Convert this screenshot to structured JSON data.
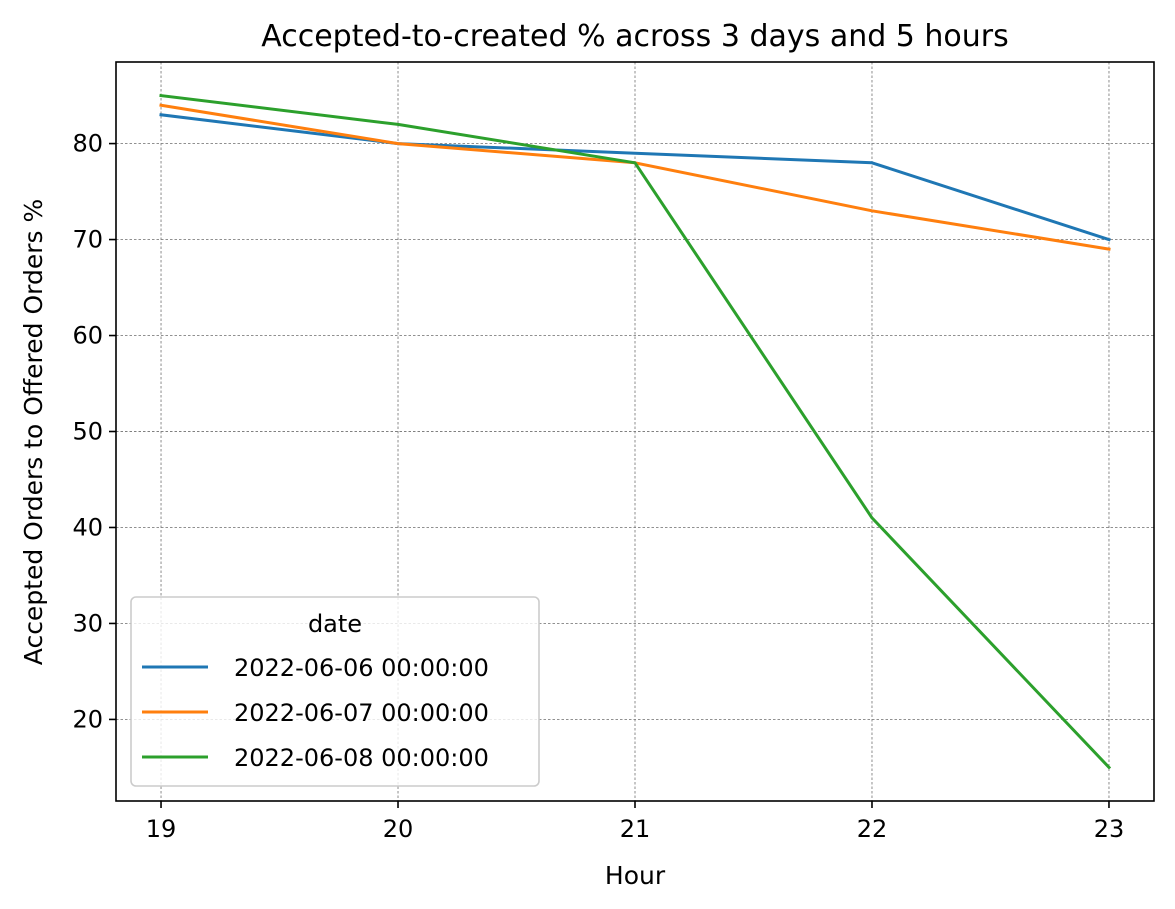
{
  "chart_data": {
    "type": "line",
    "title": "Accepted-to-created % across 3 days and 5 hours",
    "xlabel": "Hour",
    "ylabel": "Accepted Orders to Offered Orders %",
    "x": [
      19,
      20,
      21,
      22,
      23
    ],
    "x_ticks": [
      "19",
      "20",
      "21",
      "22",
      "23"
    ],
    "y_ticks": [
      20,
      30,
      40,
      50,
      60,
      70,
      80
    ],
    "xlim": [
      18.81,
      23.19
    ],
    "ylim": [
      11.5,
      88.5
    ],
    "grid": true,
    "legend": {
      "title": "date",
      "placement": "lower-left"
    },
    "series": [
      {
        "name": "2022-06-06 00:00:00",
        "color": "#1f77b4",
        "values": [
          83,
          80,
          79,
          78,
          70
        ]
      },
      {
        "name": "2022-06-07 00:00:00",
        "color": "#ff7f0e",
        "values": [
          84,
          80,
          78,
          73,
          69
        ]
      },
      {
        "name": "2022-06-08 00:00:00",
        "color": "#2ca02c",
        "values": [
          85,
          82,
          78,
          41,
          15
        ]
      }
    ]
  }
}
